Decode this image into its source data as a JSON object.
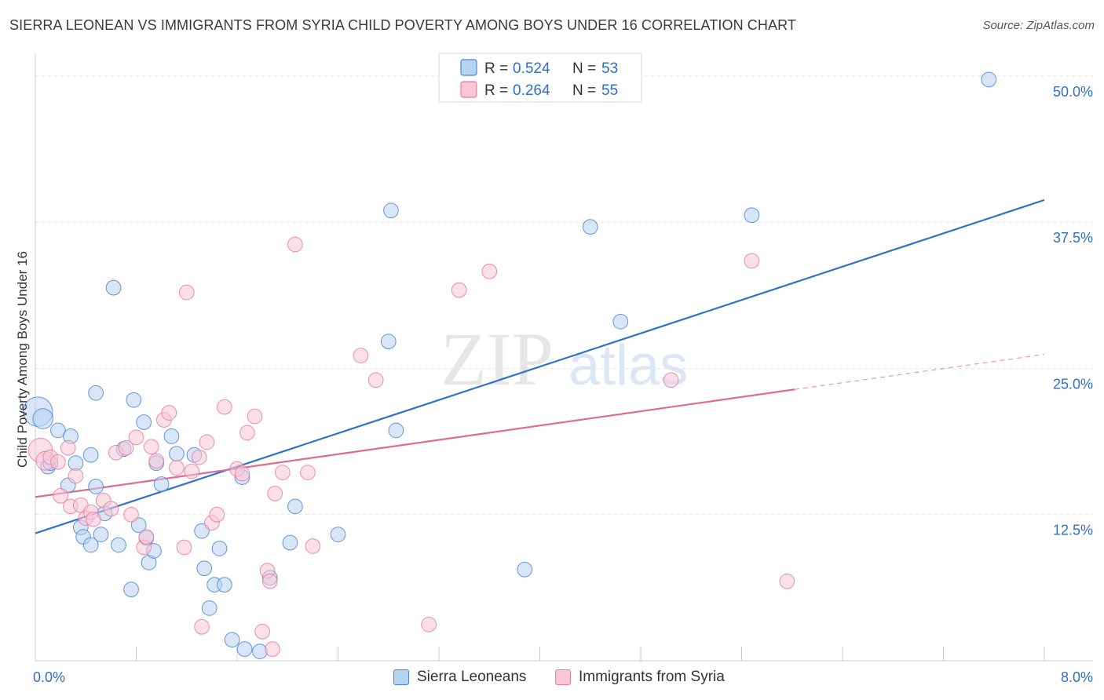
{
  "header": {
    "title": "SIERRA LEONEAN VS IMMIGRANTS FROM SYRIA CHILD POVERTY AMONG BOYS UNDER 16 CORRELATION CHART",
    "source": "Source: ZipAtlas.com"
  },
  "watermark": {
    "zip": "ZIP",
    "atlas": "atlas"
  },
  "chart_data": {
    "type": "scatter",
    "xlabel": "",
    "ylabel": "Child Poverty Among Boys Under 16",
    "xlim": [
      0,
      8
    ],
    "ylim": [
      0,
      51
    ],
    "x_tick_labels": [
      "0.0%",
      "8.0%"
    ],
    "y_ticks": [
      12.5,
      25.0,
      37.5,
      50.0
    ],
    "y_tick_labels": [
      "12.5%",
      "25.0%",
      "37.5%",
      "50.0%"
    ],
    "grid": true,
    "legend_position": "top-center",
    "colors": {
      "blue": "#4a86d4",
      "blue_fill": "#b8d2f2",
      "blue_line": "#2f72c8",
      "pink": "#e87aa0",
      "pink_fill": "#f9c6d6",
      "pink_line": "#e06a95",
      "value_text": "#2f6fc6"
    },
    "legend": [
      {
        "r_label": "R =",
        "r": "0.524",
        "n_label": "N =",
        "n": "53"
      },
      {
        "r_label": "R =",
        "r": "0.264",
        "n_label": "N =",
        "n": "55"
      }
    ],
    "series": [
      {
        "name": "Sierra Leoneans",
        "color": "blue",
        "trend": {
          "x": [
            0,
            8
          ],
          "y": [
            10.9,
            39.4
          ]
        },
        "points": [
          [
            0.02,
            21.3,
            2.2
          ],
          [
            0.06,
            20.7,
            1.5
          ],
          [
            0.1,
            16.6,
            1.1
          ],
          [
            0.18,
            19.7,
            1.1
          ],
          [
            0.28,
            19.2,
            1.1
          ],
          [
            0.44,
            17.6,
            1.1
          ],
          [
            0.12,
            16.9,
            1.1
          ],
          [
            0.32,
            16.9,
            1.1
          ],
          [
            0.26,
            15.0,
            1.1
          ],
          [
            0.48,
            14.9,
            1.1
          ],
          [
            0.55,
            12.6,
            1.1
          ],
          [
            0.36,
            11.4,
            1.1
          ],
          [
            0.38,
            10.6,
            1.1
          ],
          [
            0.52,
            10.8,
            1.1
          ],
          [
            0.66,
            9.9,
            1.1
          ],
          [
            0.44,
            9.9,
            1.1
          ],
          [
            0.48,
            22.9,
            1.1
          ],
          [
            0.62,
            31.9,
            1.1
          ],
          [
            0.7,
            18.1,
            1.1
          ],
          [
            0.78,
            22.3,
            1.1
          ],
          [
            0.86,
            20.4,
            1.1
          ],
          [
            0.96,
            16.9,
            1.1
          ],
          [
            1.0,
            15.1,
            1.1
          ],
          [
            1.08,
            19.2,
            1.1
          ],
          [
            1.12,
            17.7,
            1.1
          ],
          [
            0.88,
            10.5,
            1.1
          ],
          [
            0.9,
            8.4,
            1.1
          ],
          [
            0.94,
            9.4,
            1.1
          ],
          [
            0.82,
            11.6,
            1.1
          ],
          [
            0.76,
            6.1,
            1.1
          ],
          [
            1.26,
            17.6,
            1.1
          ],
          [
            1.32,
            11.1,
            1.1
          ],
          [
            1.34,
            7.9,
            1.1
          ],
          [
            1.46,
            9.6,
            1.1
          ],
          [
            1.42,
            6.5,
            1.1
          ],
          [
            1.5,
            6.5,
            1.1
          ],
          [
            1.38,
            4.5,
            1.1
          ],
          [
            1.64,
            15.7,
            1.1
          ],
          [
            1.56,
            1.8,
            1.1
          ],
          [
            1.66,
            1.0,
            1.1
          ],
          [
            1.78,
            0.8,
            1.1
          ],
          [
            1.86,
            7.1,
            1.1
          ],
          [
            2.02,
            10.1,
            1.1
          ],
          [
            2.06,
            13.2,
            1.1
          ],
          [
            2.4,
            10.8,
            1.1
          ],
          [
            2.82,
            38.5,
            1.1
          ],
          [
            2.86,
            19.7,
            1.1
          ],
          [
            2.8,
            27.3,
            1.1
          ],
          [
            3.88,
            7.8,
            1.1
          ],
          [
            4.4,
            37.1,
            1.1
          ],
          [
            4.64,
            29.0,
            1.1
          ],
          [
            5.68,
            38.1,
            1.1
          ],
          [
            7.56,
            49.7,
            1.1
          ]
        ]
      },
      {
        "name": "Immigrants from Syria",
        "color": "pink",
        "trend": {
          "x": [
            0,
            6.02
          ],
          "y": [
            14.0,
            23.2
          ]
        },
        "trend_dashed": {
          "x": [
            6.02,
            8
          ],
          "y": [
            23.2,
            26.2
          ]
        },
        "points": [
          [
            0.04,
            18.0,
            1.8
          ],
          [
            0.08,
            17.1,
            1.4
          ],
          [
            0.12,
            17.4,
            1.1
          ],
          [
            0.18,
            17.0,
            1.1
          ],
          [
            0.2,
            14.1,
            1.1
          ],
          [
            0.26,
            18.2,
            1.1
          ],
          [
            0.28,
            13.2,
            1.1
          ],
          [
            0.32,
            15.8,
            1.1
          ],
          [
            0.36,
            13.3,
            1.1
          ],
          [
            0.4,
            12.2,
            1.1
          ],
          [
            0.44,
            12.7,
            1.1
          ],
          [
            0.46,
            12.1,
            1.1
          ],
          [
            0.54,
            13.7,
            1.1
          ],
          [
            0.6,
            13.0,
            1.1
          ],
          [
            0.64,
            17.8,
            1.1
          ],
          [
            0.72,
            18.2,
            1.1
          ],
          [
            0.76,
            12.5,
            1.1
          ],
          [
            0.8,
            19.1,
            1.1
          ],
          [
            0.86,
            9.7,
            1.1
          ],
          [
            0.88,
            10.6,
            1.1
          ],
          [
            0.92,
            18.3,
            1.1
          ],
          [
            0.96,
            17.1,
            1.1
          ],
          [
            1.02,
            20.6,
            1.1
          ],
          [
            1.06,
            21.2,
            1.1
          ],
          [
            1.12,
            16.5,
            1.1
          ],
          [
            1.18,
            9.7,
            1.1
          ],
          [
            1.2,
            31.5,
            1.1
          ],
          [
            1.24,
            16.2,
            1.1
          ],
          [
            1.3,
            17.4,
            1.1
          ],
          [
            1.36,
            18.7,
            1.1
          ],
          [
            1.4,
            11.8,
            1.1
          ],
          [
            1.44,
            12.5,
            1.1
          ],
          [
            1.5,
            21.7,
            1.1
          ],
          [
            1.32,
            2.9,
            1.1
          ],
          [
            1.6,
            16.4,
            1.1
          ],
          [
            1.64,
            16.0,
            1.1
          ],
          [
            1.68,
            19.5,
            1.1
          ],
          [
            1.74,
            20.9,
            1.1
          ],
          [
            1.8,
            2.5,
            1.1
          ],
          [
            1.84,
            7.7,
            1.1
          ],
          [
            1.86,
            6.8,
            1.1
          ],
          [
            1.88,
            1.0,
            1.1
          ],
          [
            1.9,
            14.3,
            1.1
          ],
          [
            1.96,
            16.1,
            1.1
          ],
          [
            2.06,
            35.6,
            1.1
          ],
          [
            2.16,
            16.1,
            1.1
          ],
          [
            2.2,
            9.8,
            1.1
          ],
          [
            2.58,
            26.1,
            1.1
          ],
          [
            2.7,
            24.0,
            1.1
          ],
          [
            3.12,
            3.1,
            1.1
          ],
          [
            3.36,
            31.7,
            1.1
          ],
          [
            3.6,
            33.3,
            1.1
          ],
          [
            5.04,
            24.0,
            1.1
          ],
          [
            5.68,
            34.2,
            1.1
          ],
          [
            5.96,
            6.8,
            1.1
          ]
        ]
      }
    ]
  },
  "bottom_legend": [
    {
      "label": "Sierra Leoneans",
      "color": "blue"
    },
    {
      "label": "Immigrants from Syria",
      "color": "pink"
    }
  ]
}
